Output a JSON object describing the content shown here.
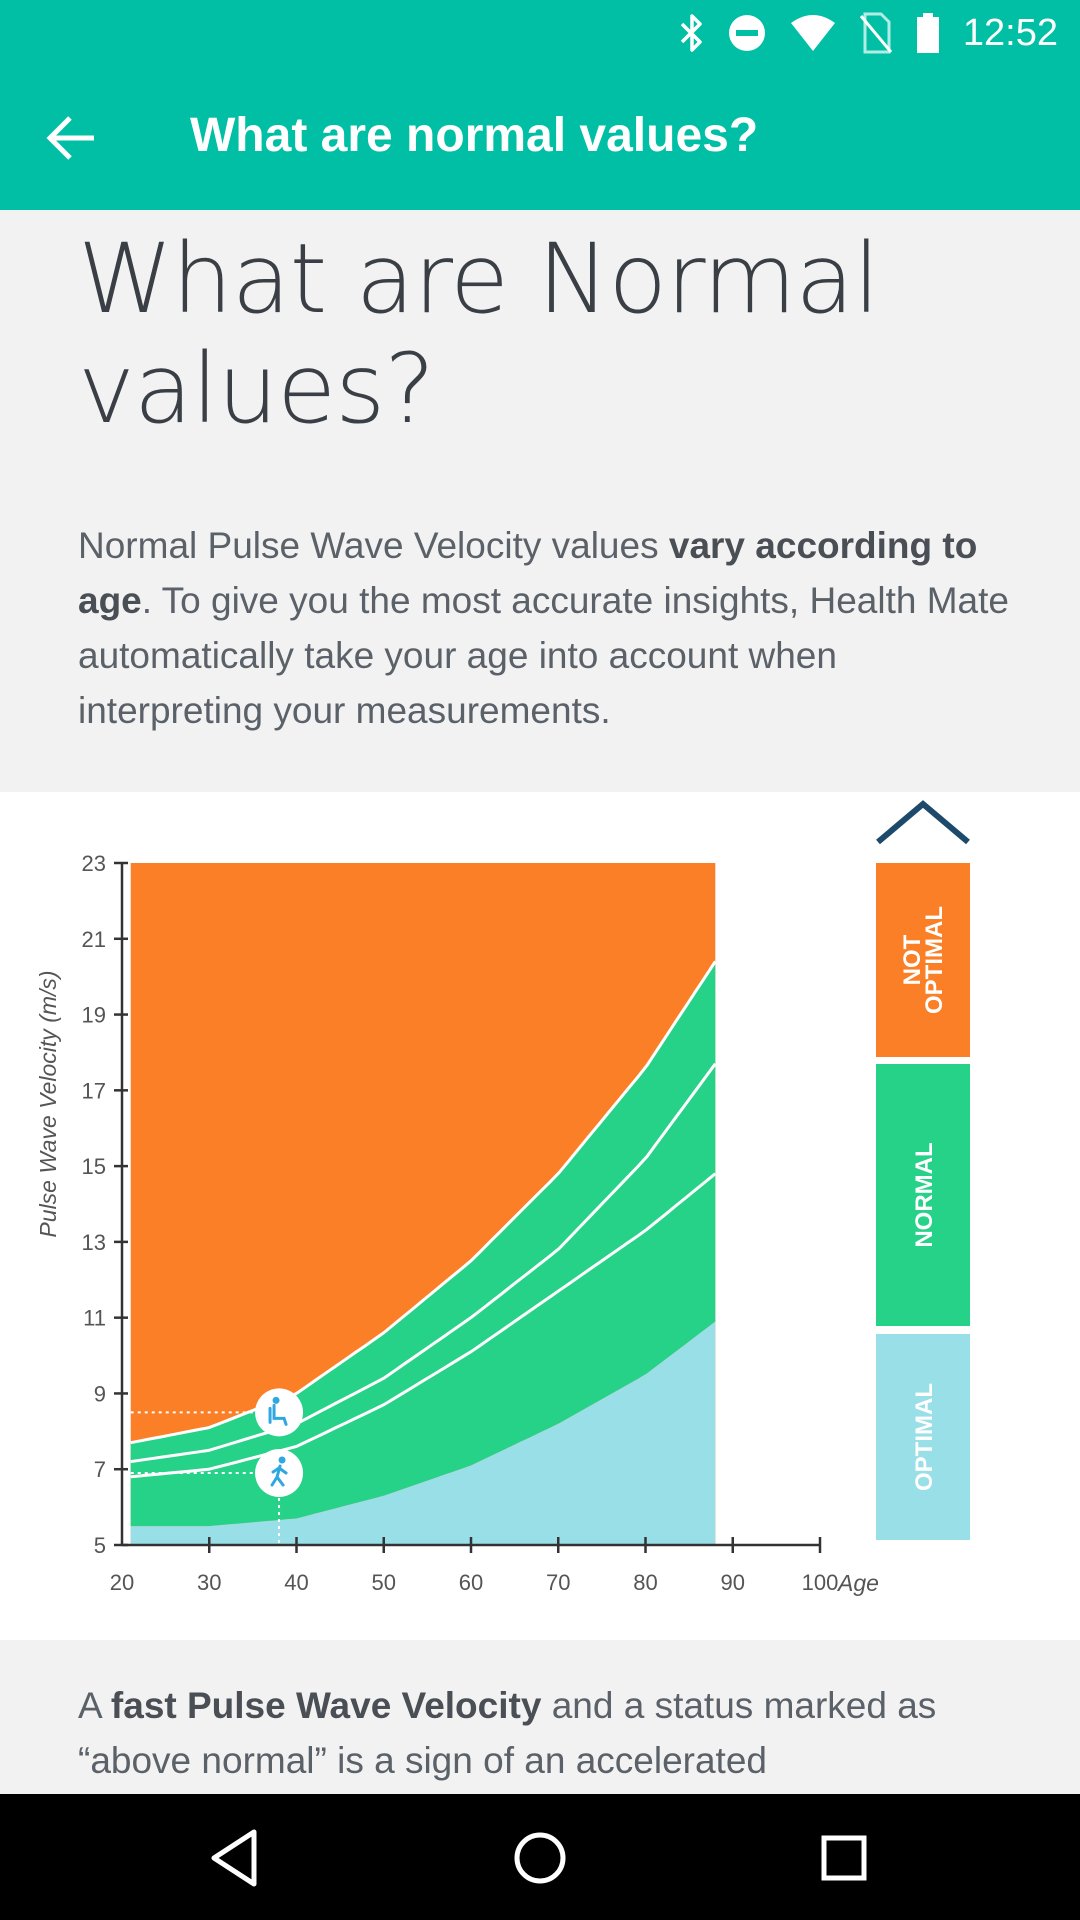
{
  "status_bar": {
    "time": "12:52",
    "icons": [
      "bluetooth-icon",
      "do-not-disturb-icon",
      "wifi-icon",
      "no-sim-icon",
      "battery-icon"
    ]
  },
  "app_bar": {
    "title": "What are normal values?",
    "back_icon": "arrow-back-icon"
  },
  "article": {
    "heading": "What are Normal values?",
    "intro": {
      "pre": "Normal Pulse Wave Velocity values ",
      "bold1": "vary according to age",
      "post": ". To give you the most accurate insights, Health Mate automatically take your age into account when interpreting your measurements."
    },
    "bottom": {
      "pre": "A ",
      "bold": "fast Pulse Wave Velocity",
      "post": " and a status marked as “above normal” is a sign of an accelerated"
    }
  },
  "chart_data": {
    "type": "area",
    "title": "",
    "xlabel": "Age",
    "ylabel": "Pulse Wave Velocity (m/s)",
    "xlim": [
      20,
      100
    ],
    "ylim": [
      5,
      23
    ],
    "x_ticks": [
      20,
      30,
      40,
      50,
      60,
      70,
      80,
      90,
      100
    ],
    "y_ticks": [
      5,
      7,
      9,
      11,
      13,
      15,
      17,
      19,
      21,
      23
    ],
    "plot_x_range": [
      21,
      88
    ],
    "x": [
      21,
      30,
      40,
      50,
      60,
      70,
      80,
      88
    ],
    "series": [
      {
        "name": "Optimal upper",
        "values": [
          5.5,
          5.5,
          5.7,
          6.3,
          7.1,
          8.2,
          9.5,
          10.9
        ]
      },
      {
        "name": "Normal upper (lower line)",
        "values": [
          6.8,
          7.0,
          7.6,
          8.7,
          10.1,
          11.7,
          13.3,
          14.8
        ]
      },
      {
        "name": "Normal upper (upper line)",
        "values": [
          7.2,
          7.5,
          8.2,
          9.4,
          11.0,
          12.8,
          15.2,
          17.7
        ]
      },
      {
        "name": "Not optimal threshold",
        "values": [
          7.7,
          8.1,
          9.0,
          10.6,
          12.5,
          14.8,
          17.6,
          20.4
        ]
      }
    ],
    "markers": [
      {
        "name": "resting",
        "icon": "seated-person-icon",
        "age": 38,
        "value": 8.5
      },
      {
        "name": "active",
        "icon": "walking-person-icon",
        "age": 38,
        "value": 6.9
      }
    ],
    "legend": [
      {
        "label": "NOT OPTIMAL",
        "color": "#fa7f26"
      },
      {
        "label": "NORMAL",
        "color": "#26d188"
      },
      {
        "label": "OPTIMAL",
        "color": "#99dfe8"
      }
    ],
    "colors": {
      "not_optimal": "#fa7f26",
      "normal": "#26d188",
      "optimal": "#99dfe8",
      "axis": "#333333",
      "chevron": "#1d4a6b"
    }
  },
  "nav_bar": {
    "back_icon": "nav-back-icon",
    "home_icon": "nav-home-icon",
    "recents_icon": "nav-recents-icon"
  }
}
